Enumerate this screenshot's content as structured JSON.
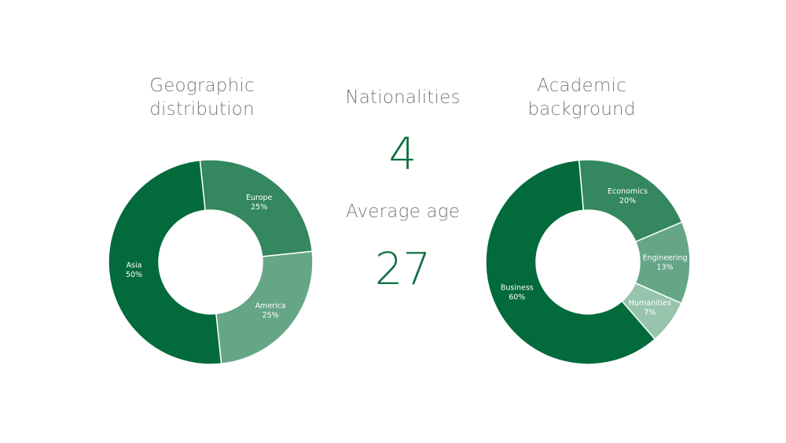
{
  "center": {
    "nationalities_label": "Nationalities",
    "nationalities_value": "4",
    "average_age_label": "Average age",
    "average_age_value": "27"
  },
  "chart_data": [
    {
      "type": "pie",
      "title_line1": "Geographic",
      "title_line2": "distribution",
      "slices": [
        {
          "label": "Europe",
          "value": 25,
          "percent": "25%",
          "color": "#34875f"
        },
        {
          "label": "America",
          "value": 25,
          "percent": "25%",
          "color": "#65a687"
        },
        {
          "label": "Asia",
          "value": 50,
          "percent": "50%",
          "color": "#036a3c"
        }
      ]
    },
    {
      "type": "pie",
      "title_line1": "Academic",
      "title_line2": "background",
      "slices": [
        {
          "label": "Economics",
          "value": 20,
          "percent": "20%",
          "color": "#34875f"
        },
        {
          "label": "Engineering",
          "value": 13,
          "percent": "13%",
          "color": "#65a687"
        },
        {
          "label": "Humanities",
          "value": 7,
          "percent": "7%",
          "color": "#97c4ad"
        },
        {
          "label": "Business",
          "value": 60,
          "percent": "60%",
          "color": "#036a3c"
        }
      ]
    }
  ]
}
